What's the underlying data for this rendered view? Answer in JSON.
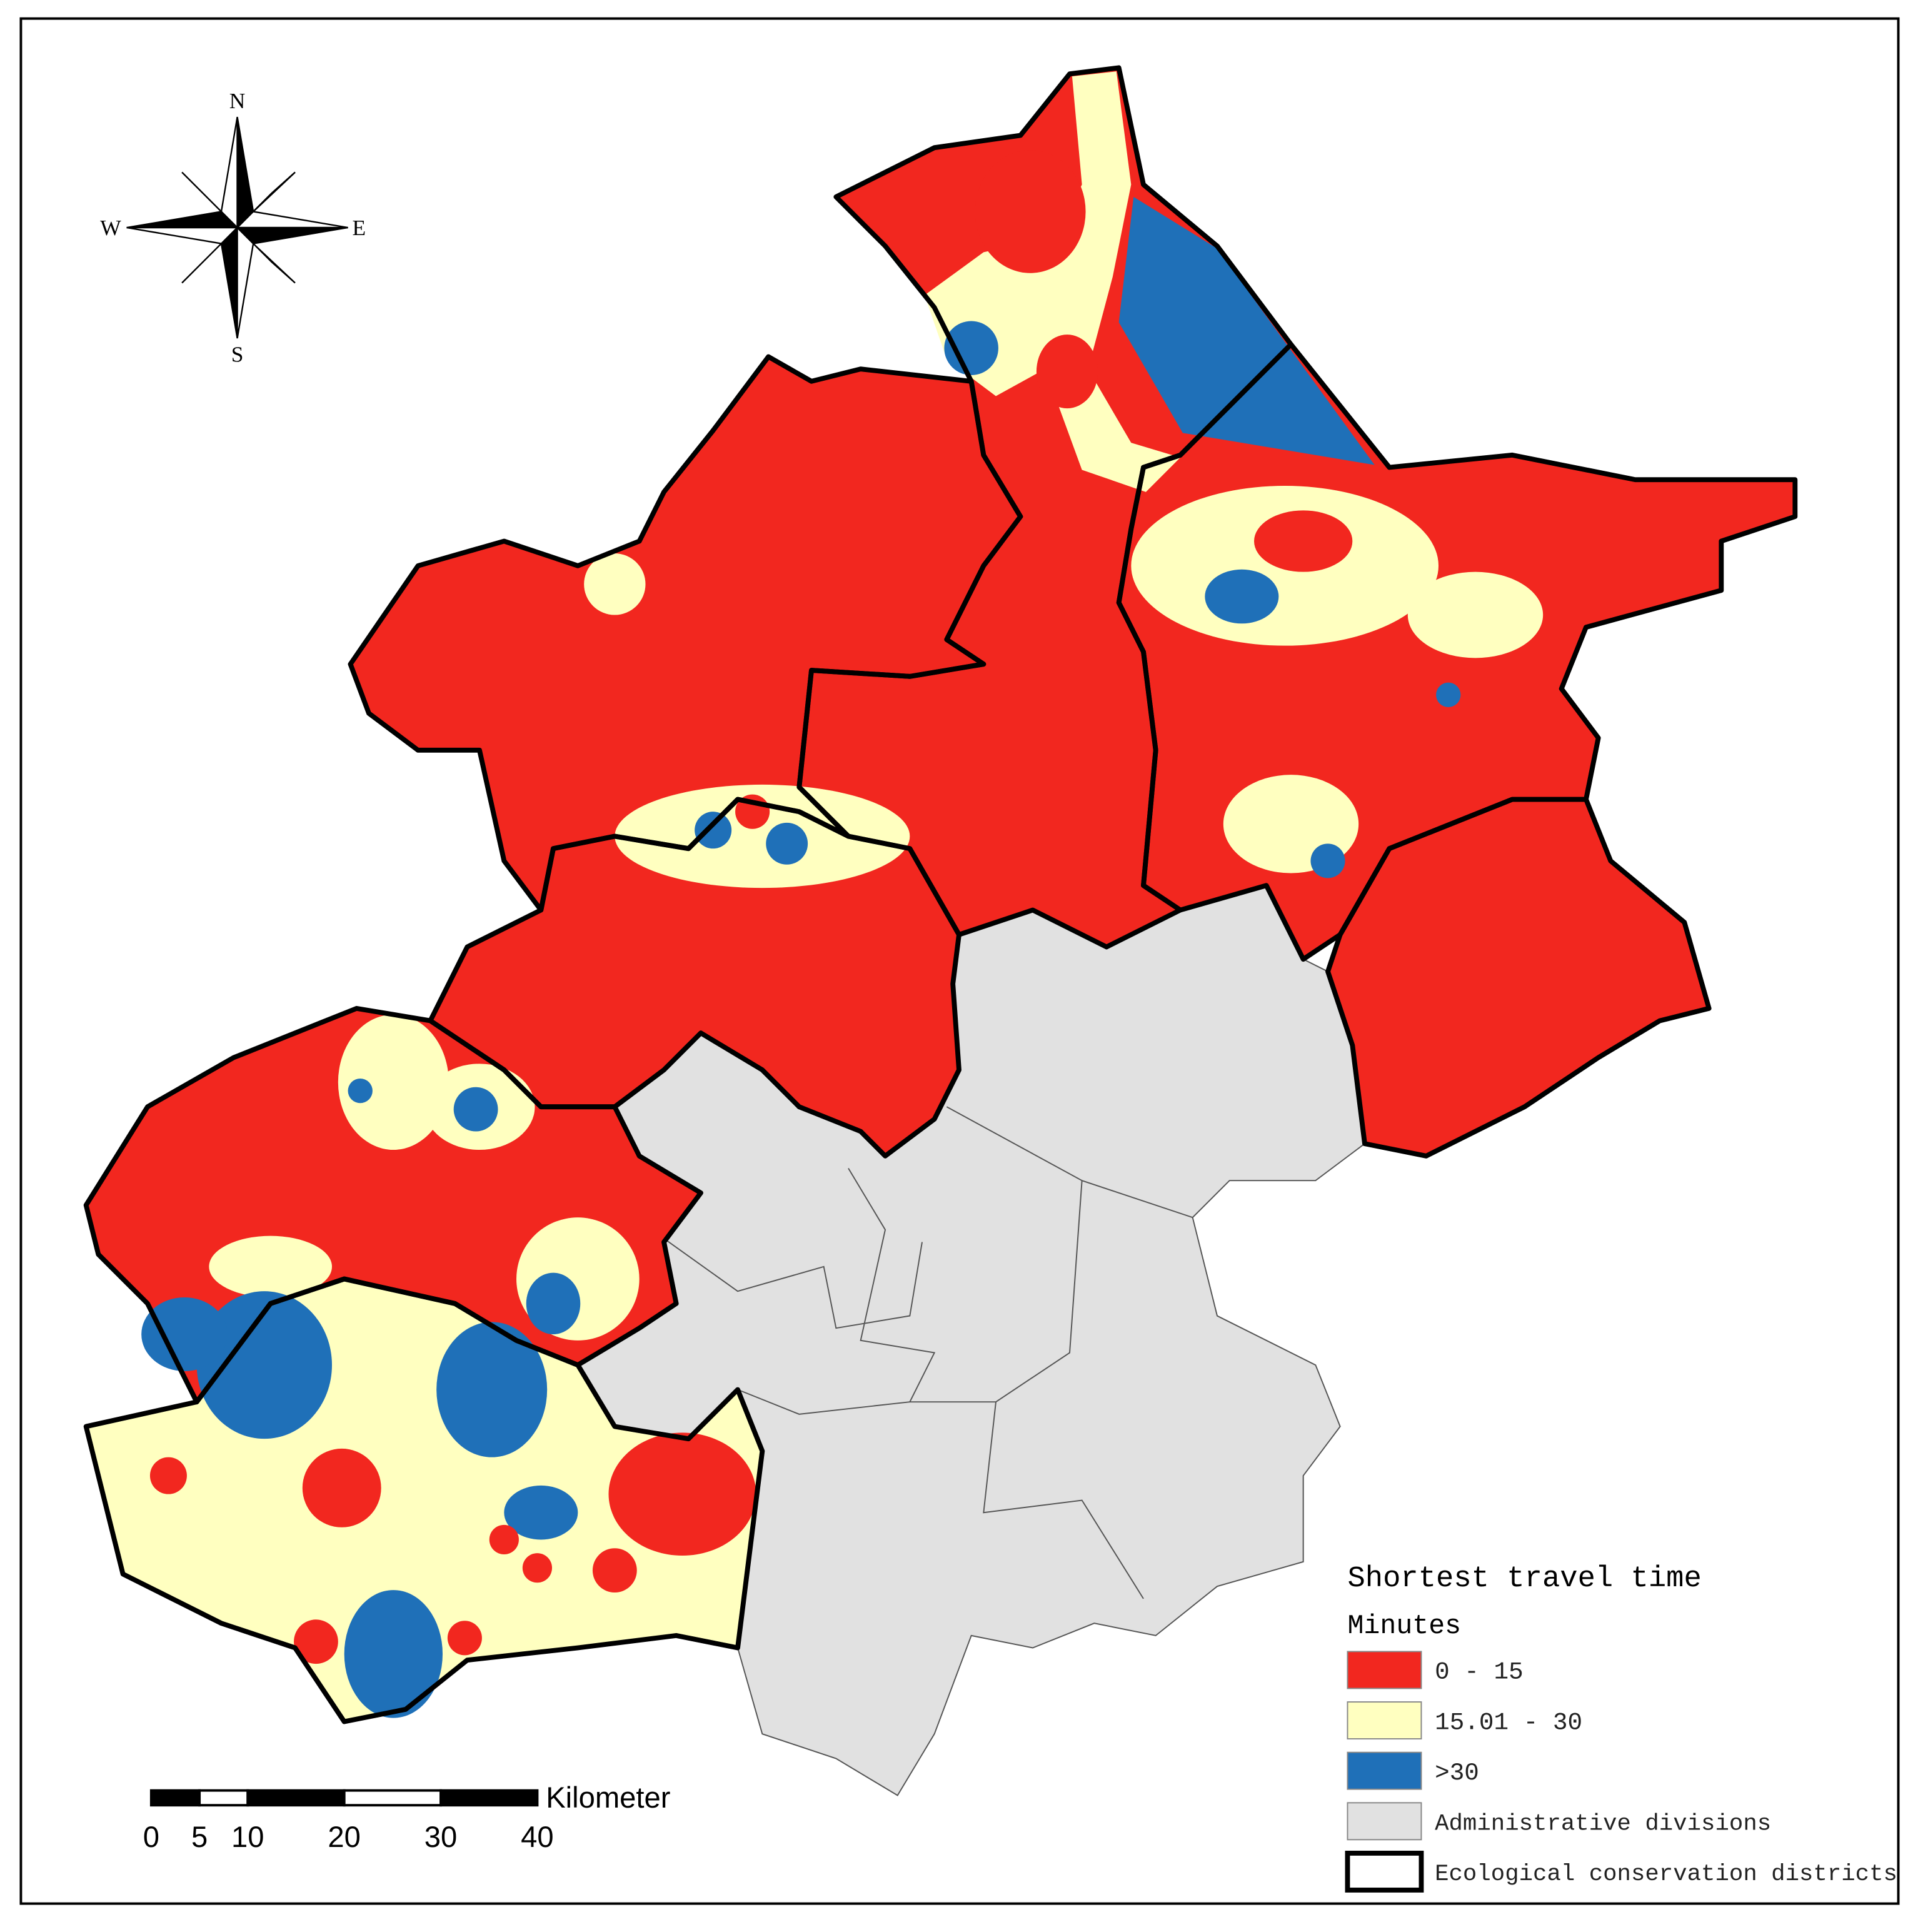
{
  "title": "Shortest travel time",
  "subtitle": "Minutes",
  "legend": [
    {
      "label": "0 - 15",
      "color": "#f2271f"
    },
    {
      "label": "15.01 - 30",
      "color": "#ffffc0"
    },
    {
      "label": ">30",
      "color": "#1f70b8"
    },
    {
      "label": "Administrative divisions",
      "color": "#e1e1e1"
    },
    {
      "label": "Ecological conservation districts",
      "color": "#ffffff"
    }
  ],
  "compass": {
    "north": "N",
    "south": "S",
    "east": "E",
    "west": "W"
  },
  "scale_bar": {
    "unit": "Kilometer",
    "ticks": [
      0,
      5,
      10,
      20,
      30,
      40
    ]
  }
}
